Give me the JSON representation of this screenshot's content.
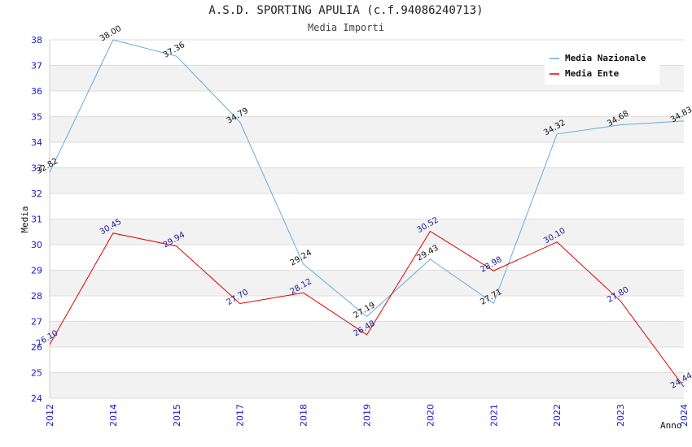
{
  "chart_data": {
    "type": "line",
    "title": "A.S.D. SPORTING APULIA (c.f.94086240713)",
    "subtitle": "Media Importi",
    "xlabel": "Anno",
    "ylabel": "Media",
    "ylim": [
      24,
      38
    ],
    "yticks": [
      "24",
      "25",
      "26",
      "27",
      "28",
      "29",
      "30",
      "31",
      "32",
      "33",
      "34",
      "35",
      "36",
      "37",
      "38"
    ],
    "categories": [
      "2012",
      "2014",
      "2015",
      "2017",
      "2018",
      "2019",
      "2020",
      "2021",
      "2022",
      "2023",
      "2024"
    ],
    "series": [
      {
        "name": "Media Nazionale",
        "color": "#66aadd",
        "values": [
          32.82,
          38.0,
          37.36,
          34.79,
          29.24,
          27.19,
          29.43,
          27.71,
          34.32,
          34.68,
          34.83
        ],
        "labels": [
          "32.82",
          "38.00",
          "37.36",
          "34.79",
          "29.24",
          "27.19",
          "29.43",
          "27.71",
          "34.32",
          "34.68",
          "34.83"
        ]
      },
      {
        "name": "Media Ente",
        "color": "#dd0000",
        "values": [
          26.1,
          30.45,
          29.94,
          27.7,
          28.12,
          26.48,
          30.52,
          28.98,
          30.1,
          27.8,
          24.44
        ],
        "labels": [
          "26.10",
          "30.45",
          "29.94",
          "27.70",
          "28.12",
          "26.48",
          "30.52",
          "28.98",
          "30.10",
          "27.80",
          "24.44"
        ]
      }
    ],
    "legend_position": "top-right"
  }
}
